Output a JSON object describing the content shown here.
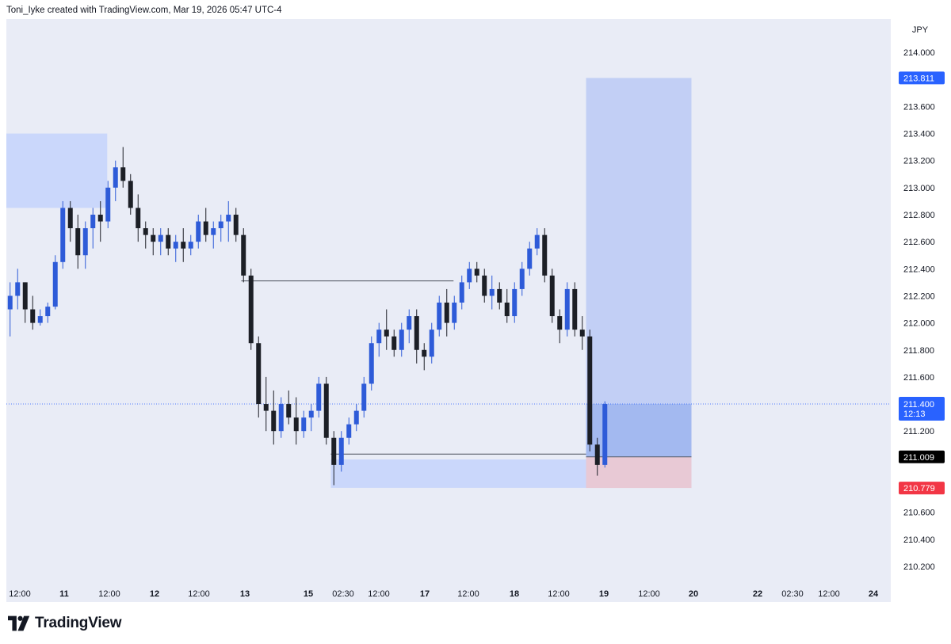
{
  "header": {
    "caption": "Toni_Iyke created with TradingView.com, Mar 19, 2026 05:47 UTC-4"
  },
  "footer": {
    "brand": "TradingView"
  },
  "chart_data": {
    "type": "candlestick",
    "currency": "JPY",
    "ylim": [
      210.1,
      214.2
    ],
    "y_ticks": [
      "210.200",
      "210.400",
      "210.600",
      "211.200",
      "211.600",
      "211.800",
      "212.000",
      "212.200",
      "212.400",
      "212.600",
      "212.800",
      "213.000",
      "213.200",
      "213.400",
      "213.600",
      "214.000"
    ],
    "x_ticks": [
      "12:00",
      "11",
      "12:00",
      "12",
      "12:00",
      "13",
      "15",
      "02:30",
      "12:00",
      "17",
      "12:00",
      "18",
      "12:00",
      "19",
      "12:00",
      "20",
      "22",
      "02:30",
      "12:00",
      "24"
    ],
    "current_price": {
      "label": "211.400",
      "countdown": "12:13",
      "value": 211.4,
      "color": "#2962ff"
    },
    "price_labels": [
      {
        "label": "213.811",
        "value": 213.811,
        "bg": "#2962ff",
        "fg": "#ffffff"
      },
      {
        "label": "211.009",
        "value": 211.009,
        "bg": "#000000",
        "fg": "#ffffff"
      },
      {
        "label": "210.779",
        "value": 210.779,
        "bg": "#f23645",
        "fg": "#ffffff"
      }
    ],
    "position": {
      "entry": 211.009,
      "target": 213.811,
      "stop": 210.779,
      "start_slot": 77.0,
      "end_slot": 91.0
    },
    "zones": [
      {
        "name": "supply-zone",
        "top": 213.4,
        "bottom": 212.85,
        "start_slot": 0,
        "end_slot": 13.4,
        "color": "#cad7fb"
      },
      {
        "name": "demand-zone",
        "top": 210.99,
        "bottom": 210.78,
        "start_slot": 43.1,
        "end_slot": 77.0,
        "color": "#cad7fb"
      }
    ],
    "levels": [
      {
        "name": "high-level-line",
        "value": 212.31,
        "start_slot": 31.2,
        "end_slot": 59.4
      },
      {
        "name": "low-level-line",
        "value": 211.03,
        "start_slot": 43.1,
        "end_slot": 77.0
      }
    ],
    "candles": [
      [
        212.1,
        212.3,
        211.9,
        212.2
      ],
      [
        212.2,
        212.4,
        212.1,
        212.3
      ],
      [
        212.3,
        212.3,
        212.0,
        212.1
      ],
      [
        212.1,
        212.2,
        211.95,
        212.0
      ],
      [
        212.0,
        212.1,
        211.98,
        212.05
      ],
      [
        212.05,
        212.15,
        212.0,
        212.12
      ],
      [
        212.12,
        212.5,
        212.1,
        212.45
      ],
      [
        212.45,
        212.9,
        212.4,
        212.85
      ],
      [
        212.85,
        212.9,
        212.6,
        212.7
      ],
      [
        212.7,
        212.8,
        212.4,
        212.5
      ],
      [
        212.5,
        212.75,
        212.4,
        212.7
      ],
      [
        212.7,
        212.85,
        212.55,
        212.8
      ],
      [
        212.8,
        212.9,
        212.6,
        212.75
      ],
      [
        212.75,
        213.05,
        212.7,
        213.0
      ],
      [
        213.0,
        213.2,
        212.9,
        213.15
      ],
      [
        213.15,
        213.3,
        213.0,
        213.05
      ],
      [
        213.05,
        213.1,
        212.8,
        212.85
      ],
      [
        212.85,
        212.95,
        212.6,
        212.7
      ],
      [
        212.7,
        212.75,
        212.55,
        212.65
      ],
      [
        212.65,
        212.7,
        212.5,
        212.6
      ],
      [
        212.6,
        212.7,
        212.5,
        212.65
      ],
      [
        212.65,
        212.7,
        212.5,
        212.55
      ],
      [
        212.55,
        212.65,
        212.45,
        212.6
      ],
      [
        212.6,
        212.7,
        212.45,
        212.55
      ],
      [
        212.55,
        212.65,
        212.5,
        212.6
      ],
      [
        212.6,
        212.8,
        212.55,
        212.75
      ],
      [
        212.75,
        212.85,
        212.6,
        212.65
      ],
      [
        212.65,
        212.75,
        212.55,
        212.7
      ],
      [
        212.7,
        212.8,
        212.6,
        212.75
      ],
      [
        212.75,
        212.9,
        212.6,
        212.8
      ],
      [
        212.8,
        212.85,
        212.6,
        212.65
      ],
      [
        212.65,
        212.7,
        212.3,
        212.35
      ],
      [
        212.35,
        212.4,
        211.8,
        211.85
      ],
      [
        211.85,
        211.9,
        211.3,
        211.4
      ],
      [
        211.4,
        211.6,
        211.2,
        211.35
      ],
      [
        211.35,
        211.5,
        211.1,
        211.2
      ],
      [
        211.2,
        211.45,
        211.15,
        211.4
      ],
      [
        211.4,
        211.5,
        211.25,
        211.3
      ],
      [
        211.3,
        211.45,
        211.1,
        211.2
      ],
      [
        211.2,
        211.35,
        211.15,
        211.3
      ],
      [
        211.3,
        211.4,
        211.2,
        211.35
      ],
      [
        211.35,
        211.6,
        211.3,
        211.55
      ],
      [
        211.55,
        211.6,
        211.1,
        211.15
      ],
      [
        211.15,
        211.2,
        210.8,
        210.95
      ],
      [
        210.95,
        211.2,
        210.9,
        211.15
      ],
      [
        211.15,
        211.3,
        211.1,
        211.25
      ],
      [
        211.25,
        211.4,
        211.2,
        211.35
      ],
      [
        211.35,
        211.6,
        211.3,
        211.55
      ],
      [
        211.55,
        211.9,
        211.5,
        211.85
      ],
      [
        211.85,
        212.0,
        211.75,
        211.95
      ],
      [
        211.95,
        212.1,
        211.8,
        211.9
      ],
      [
        211.9,
        211.95,
        211.75,
        211.8
      ],
      [
        211.8,
        212.0,
        211.75,
        211.95
      ],
      [
        211.95,
        212.1,
        211.85,
        212.05
      ],
      [
        212.05,
        212.1,
        211.7,
        211.8
      ],
      [
        211.8,
        211.85,
        211.65,
        211.75
      ],
      [
        211.75,
        212.0,
        211.7,
        211.95
      ],
      [
        211.95,
        212.2,
        211.9,
        212.15
      ],
      [
        212.15,
        212.25,
        211.9,
        212.0
      ],
      [
        212.0,
        212.2,
        211.95,
        212.15
      ],
      [
        212.15,
        212.35,
        212.1,
        212.3
      ],
      [
        212.3,
        212.45,
        212.25,
        212.4
      ],
      [
        212.4,
        212.45,
        212.3,
        212.35
      ],
      [
        212.35,
        212.4,
        212.15,
        212.2
      ],
      [
        212.2,
        212.35,
        212.1,
        212.25
      ],
      [
        212.25,
        212.3,
        212.1,
        212.15
      ],
      [
        212.15,
        212.25,
        212.0,
        212.05
      ],
      [
        212.05,
        212.3,
        212.0,
        212.25
      ],
      [
        212.25,
        212.45,
        212.2,
        212.4
      ],
      [
        212.4,
        212.6,
        212.35,
        212.55
      ],
      [
        212.55,
        212.7,
        212.5,
        212.65
      ],
      [
        212.65,
        212.7,
        212.3,
        212.35
      ],
      [
        212.35,
        212.4,
        212.0,
        212.05
      ],
      [
        212.05,
        212.1,
        211.85,
        211.95
      ],
      [
        211.95,
        212.3,
        211.9,
        212.25
      ],
      [
        212.25,
        212.3,
        211.9,
        211.95
      ],
      [
        211.95,
        212.05,
        211.8,
        211.9
      ],
      [
        211.9,
        211.95,
        211.05,
        211.1
      ],
      [
        211.1,
        211.15,
        210.87,
        210.95
      ],
      [
        210.95,
        211.42,
        210.93,
        211.4
      ]
    ]
  }
}
